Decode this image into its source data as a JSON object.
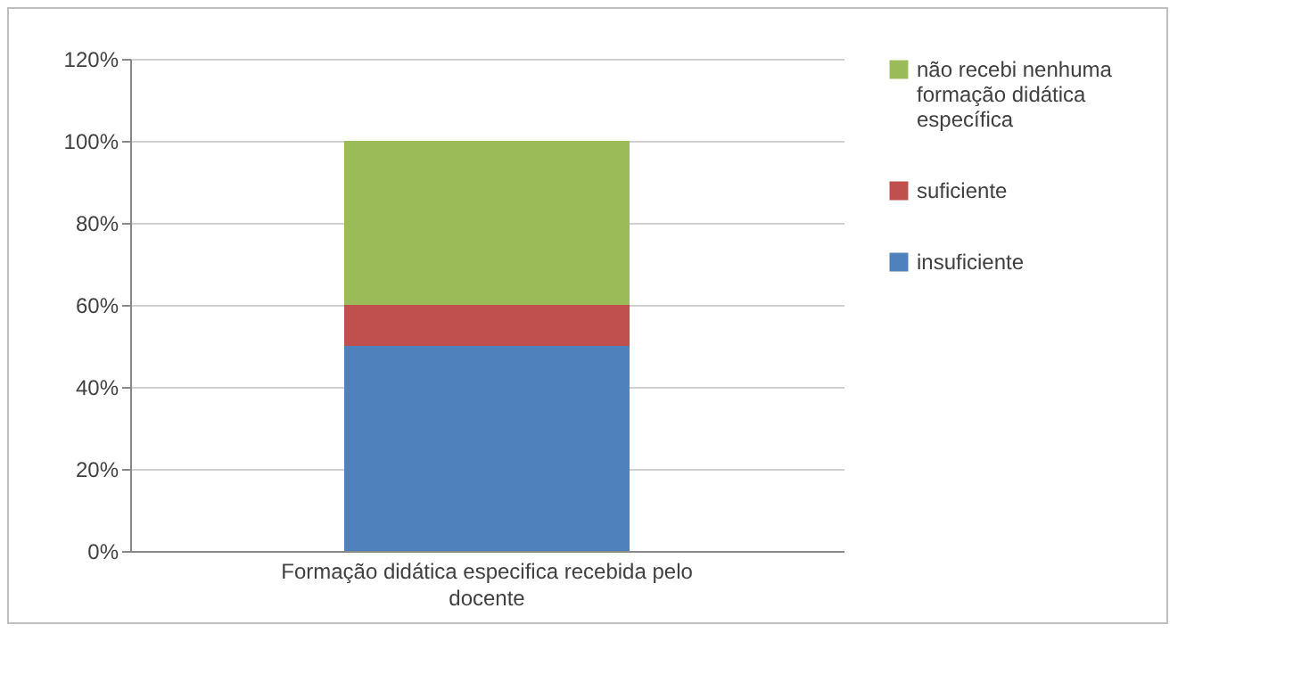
{
  "chart_data": {
    "type": "bar",
    "stacked": true,
    "categories": [
      "Formação didática especifica recebida pelo docente"
    ],
    "series": [
      {
        "name": "insuficiente",
        "color": "#4f81bd",
        "values": [
          50
        ]
      },
      {
        "name": "suficiente",
        "color": "#c0504d",
        "values": [
          10
        ]
      },
      {
        "name": "não recebi nenhuma formação didática específica",
        "color": "#9bbb59",
        "values": [
          40
        ]
      }
    ],
    "ylim": [
      0,
      120
    ],
    "yticks": [
      {
        "value": 0,
        "label": "0%"
      },
      {
        "value": 20,
        "label": "20%"
      },
      {
        "value": 40,
        "label": "40%"
      },
      {
        "value": 60,
        "label": "60%"
      },
      {
        "value": 80,
        "label": "80%"
      },
      {
        "value": 100,
        "label": "100%"
      },
      {
        "value": 120,
        "label": "120%"
      }
    ],
    "grid": "y",
    "legend": "right"
  }
}
